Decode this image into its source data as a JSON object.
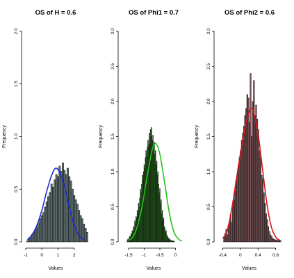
{
  "chart_data": [
    {
      "type": "histogram",
      "title": "OS of H = 0.6",
      "xlabel": "Values",
      "ylabel": "Frequency",
      "xlim": [
        -1.0,
        2.7
      ],
      "ylim": [
        0,
        2.0
      ],
      "xticks": [
        -1,
        0,
        1,
        2
      ],
      "yticks": [
        0.0,
        0.5,
        1.0,
        1.5,
        2.0
      ],
      "bar_fill": "#5b6a6b",
      "curve_color": "#1c2bd6",
      "bins": {
        "start": -0.95,
        "width": 0.1,
        "values": [
          0.01,
          0.03,
          0.04,
          0.07,
          0.09,
          0.12,
          0.14,
          0.18,
          0.22,
          0.25,
          0.28,
          0.33,
          0.38,
          0.43,
          0.47,
          0.55,
          0.52,
          0.59,
          0.64,
          0.62,
          0.72,
          0.67,
          0.75,
          0.68,
          0.64,
          0.7,
          0.62,
          0.58,
          0.5,
          0.44,
          0.4,
          0.36,
          0.3,
          0.25,
          0.22,
          0.17,
          0.13,
          0.09
        ]
      },
      "density": {
        "x": [
          -0.9,
          -0.6,
          -0.3,
          0.0,
          0.3,
          0.6,
          0.85,
          1.1,
          1.4,
          1.7,
          2.0,
          2.3,
          2.6
        ],
        "y": [
          0.02,
          0.07,
          0.16,
          0.3,
          0.48,
          0.63,
          0.7,
          0.66,
          0.53,
          0.33,
          0.16,
          0.06,
          0.02
        ]
      }
    },
    {
      "type": "histogram",
      "title": "OS of Phi1 = 0.7",
      "xlabel": "Values",
      "ylabel": "Frequency",
      "xlim": [
        -1.7,
        0.3
      ],
      "ylim": [
        0,
        3.0
      ],
      "xticks": [
        -1.5,
        -1.0,
        -0.5,
        0.0
      ],
      "yticks": [
        0.0,
        0.5,
        1.0,
        1.5,
        2.0,
        2.5,
        3.0
      ],
      "bar_fill": "#2a8a1e",
      "curve_color": "#22c319",
      "bins": {
        "start": -1.55,
        "width": 0.02,
        "values": [
          0.02,
          0.04,
          0.03,
          0.06,
          0.08,
          0.07,
          0.12,
          0.1,
          0.16,
          0.15,
          0.22,
          0.2,
          0.3,
          0.26,
          0.36,
          0.34,
          0.45,
          0.4,
          0.55,
          0.5,
          0.62,
          0.75,
          0.7,
          0.82,
          0.95,
          0.88,
          1.0,
          1.1,
          1.05,
          1.2,
          1.3,
          1.22,
          1.35,
          1.45,
          1.38,
          1.55,
          1.4,
          1.6,
          1.5,
          1.63,
          1.45,
          1.52,
          1.35,
          1.42,
          1.25,
          1.3,
          1.1,
          1.15,
          0.95,
          1.0,
          0.82,
          0.7,
          0.76,
          0.55,
          0.6,
          0.4,
          0.45,
          0.3,
          0.34,
          0.22,
          0.2,
          0.14,
          0.16,
          0.1,
          0.08,
          0.06,
          0.05,
          0.03,
          0.04,
          0.02,
          0.02,
          0.01,
          0.02,
          0.01,
          0.01,
          0.01
        ]
      },
      "density": {
        "x": [
          -1.5,
          -1.35,
          -1.2,
          -1.05,
          -0.9,
          -0.75,
          -0.63,
          -0.5,
          -0.35,
          -0.2,
          -0.05,
          0.1,
          0.2
        ],
        "y": [
          0.02,
          0.08,
          0.25,
          0.55,
          0.95,
          1.3,
          1.4,
          1.25,
          0.85,
          0.42,
          0.14,
          0.04,
          0.01
        ]
      }
    },
    {
      "type": "histogram",
      "title": "OS of Phi2 = 0.6",
      "xlabel": "Values",
      "ylabel": "Frequency",
      "xlim": [
        -0.5,
        0.9
      ],
      "ylim": [
        0,
        3.0
      ],
      "xticks": [
        -0.4,
        0.0,
        0.4,
        0.8
      ],
      "yticks": [
        0.0,
        0.5,
        1.0,
        1.5,
        2.0,
        2.5,
        3.0
      ],
      "bar_fill": "#7a5257",
      "curve_color": "#d41414",
      "bins": {
        "start": -0.38,
        "width": 0.025,
        "values": [
          0.06,
          0.12,
          0.18,
          0.1,
          0.24,
          0.3,
          0.4,
          0.28,
          0.52,
          0.6,
          0.72,
          0.86,
          0.95,
          1.1,
          1.2,
          1.3,
          1.45,
          1.55,
          1.65,
          1.8,
          1.9,
          2.1,
          2.05,
          1.7,
          2.4,
          1.5,
          2.0,
          2.3,
          1.8,
          1.95,
          1.75,
          1.6,
          1.3,
          1.2,
          0.95,
          0.9,
          0.7,
          0.55,
          0.4,
          0.32,
          0.22,
          0.15,
          0.1,
          0.08,
          0.05,
          0.04,
          0.03,
          0.03,
          0.02,
          0.02,
          0.02,
          0.02
        ]
      },
      "density": {
        "x": [
          -0.4,
          -0.3,
          -0.2,
          -0.1,
          0.0,
          0.1,
          0.2,
          0.25,
          0.3,
          0.4,
          0.5,
          0.6,
          0.7,
          0.8,
          0.9
        ],
        "y": [
          0.05,
          0.15,
          0.45,
          0.85,
          1.25,
          1.6,
          1.85,
          1.9,
          1.85,
          1.55,
          1.05,
          0.55,
          0.22,
          0.07,
          0.02
        ]
      }
    }
  ]
}
